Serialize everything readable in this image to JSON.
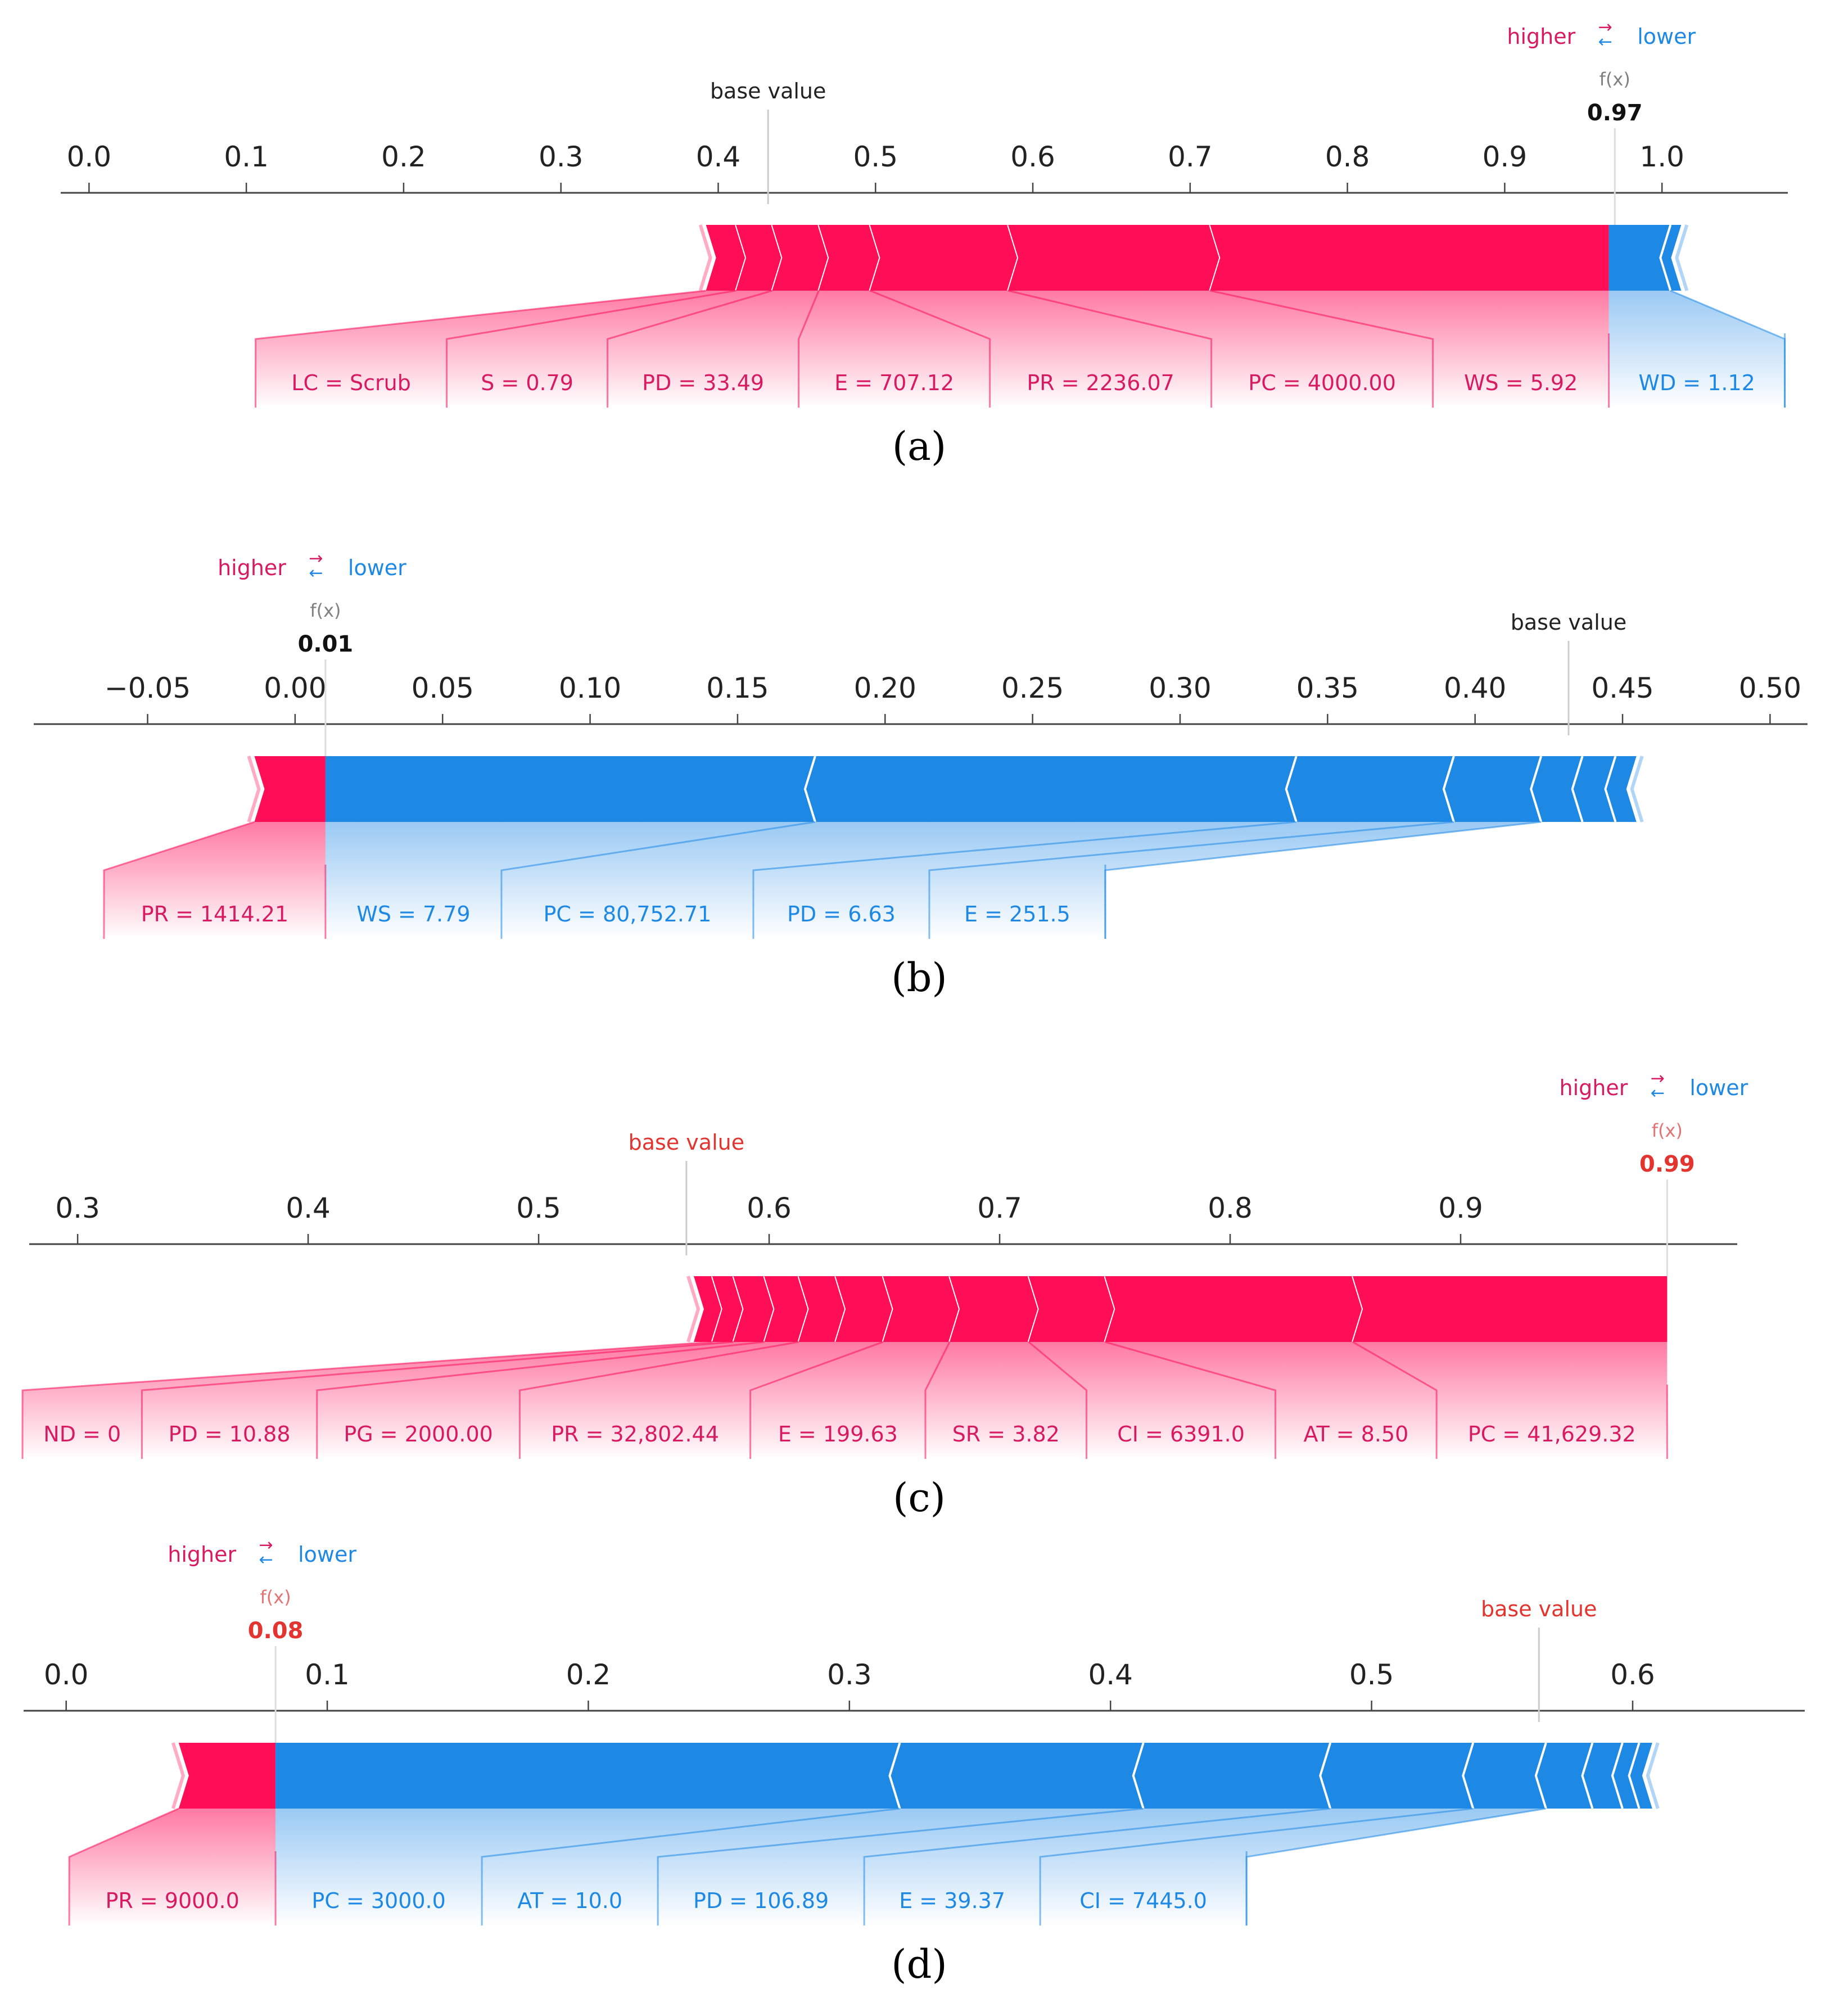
{
  "colors": {
    "positive": "#FF0D57",
    "negative": "#1E88E5",
    "positive_label": "#D81B60",
    "negative_label": "#1E88E5",
    "base_value_dark": "#222222",
    "base_value_red": "#E3342F",
    "fx_label_gray": "#808080",
    "fx_label_pink": "#E57373"
  },
  "chart_data": [
    {
      "type": "bar",
      "subtype": "shap-force-plot",
      "caption": "(a)",
      "title_style": "dark",
      "legend": {
        "higher": "higher",
        "lower": "lower",
        "placement": "above-fx"
      },
      "fx_label": "f(x)",
      "fx_value": "0.97",
      "fx": 0.97,
      "base_value_label": "base value",
      "base_value": 0.4317,
      "xlim": [
        -0.018,
        1.08
      ],
      "ticks": [
        0.0,
        0.1,
        0.2,
        0.3,
        0.4,
        0.5,
        0.6,
        0.7,
        0.8,
        0.9,
        1.0
      ],
      "tick_labels": [
        "0.0",
        "0.1",
        "0.2",
        "0.3",
        "0.4",
        "0.5",
        "0.6",
        "0.7",
        "0.8",
        "0.9",
        "1.0"
      ],
      "positive_segments": [
        0.3922,
        0.4113,
        0.4343,
        0.4639,
        0.4965,
        0.5843,
        0.7127,
        0.9662
      ],
      "negative_segments": [
        0.9662,
        1.0054,
        1.0122
      ],
      "labels": [
        {
          "text": "LC = Scrub",
          "color": "pos",
          "value": 0.3922
        },
        {
          "text": "S = 0.79",
          "color": "pos",
          "value": 0.4113
        },
        {
          "text": "PD = 33.49",
          "color": "pos",
          "value": 0.4343
        },
        {
          "text": "E = 707.12",
          "color": "pos",
          "value": 0.4639
        },
        {
          "text": "PR = 2236.07",
          "color": "pos",
          "value": 0.4965
        },
        {
          "text": "PC = 4000.00",
          "color": "pos",
          "value": 0.5843
        },
        {
          "text": "WS = 5.92",
          "color": "pos",
          "value": 0.7127
        },
        {
          "text": "WD = 1.12",
          "color": "neg",
          "value": 1.0054
        }
      ]
    },
    {
      "type": "bar",
      "subtype": "shap-force-plot",
      "caption": "(b)",
      "title_style": "dark",
      "legend": {
        "higher": "higher",
        "lower": "lower",
        "placement": "above-fx"
      },
      "fx_label": "f(x)",
      "fx_value": "0.01",
      "fx": 0.0103,
      "base_value_label": "base value",
      "base_value": 0.4317,
      "xlim": [
        -0.0886,
        0.5127
      ],
      "ticks": [
        -0.05,
        0.0,
        0.05,
        0.1,
        0.15,
        0.2,
        0.25,
        0.3,
        0.35,
        0.4,
        0.45,
        0.5
      ],
      "tick_labels": [
        "−0.05",
        "0.00",
        "0.05",
        "0.10",
        "0.15",
        "0.20",
        "0.25",
        "0.30",
        "0.35",
        "0.40",
        "0.45",
        "0.50"
      ],
      "positive_segments": [
        -0.0138,
        0.0103
      ],
      "negative_segments": [
        0.0103,
        0.1763,
        0.3394,
        0.3928,
        0.4224,
        0.4364,
        0.4476,
        0.4547
      ],
      "labels": [
        {
          "text": "PR = 1414.21",
          "color": "pos",
          "value": -0.0138
        },
        {
          "text": "WS = 7.79",
          "color": "neg",
          "value": 0.1763
        },
        {
          "text": "PC = 80,752.71",
          "color": "neg",
          "value": 0.3394
        },
        {
          "text": "PD = 6.63",
          "color": "neg",
          "value": 0.3928
        },
        {
          "text": "E = 251.5",
          "color": "neg",
          "value": 0.4224
        }
      ]
    },
    {
      "type": "bar",
      "subtype": "shap-force-plot",
      "caption": "(c)",
      "title_style": "red",
      "legend": {
        "higher": "higher",
        "lower": "lower",
        "placement": "above-fx"
      },
      "fx_label": "f(x)",
      "fx_value": "0.99",
      "fx": 0.9896,
      "base_value_label": "base value",
      "base_value": 0.5641,
      "xlim": [
        0.279,
        1.02
      ],
      "ticks": [
        0.3,
        0.4,
        0.5,
        0.6,
        0.7,
        0.8,
        0.9
      ],
      "tick_labels": [
        "0.3",
        "0.4",
        "0.5",
        "0.6",
        "0.7",
        "0.8",
        "0.9"
      ],
      "positive_segments": [
        0.5673,
        0.5753,
        0.5845,
        0.5979,
        0.6128,
        0.6288,
        0.6494,
        0.6783,
        0.7126,
        0.7457,
        0.8532,
        0.9896
      ],
      "negative_segments": [],
      "labels": [
        {
          "text": "ND = 0",
          "color": "pos",
          "value": 0.5753
        },
        {
          "text": "PD = 10.88",
          "color": "pos",
          "value": 0.5845
        },
        {
          "text": "PG = 2000.00",
          "color": "pos",
          "value": 0.5979
        },
        {
          "text": "PR = 32,802.44",
          "color": "pos",
          "value": 0.6128
        },
        {
          "text": "E = 199.63",
          "color": "pos",
          "value": 0.6494
        },
        {
          "text": "SR = 3.82",
          "color": "pos",
          "value": 0.6783
        },
        {
          "text": "CI = 6391.0",
          "color": "pos",
          "value": 0.7126
        },
        {
          "text": "AT = 8.50",
          "color": "pos",
          "value": 0.7457
        },
        {
          "text": "PC = 41,629.32",
          "color": "pos",
          "value": 0.8532
        }
      ]
    },
    {
      "type": "bar",
      "subtype": "shap-force-plot",
      "caption": "(d)",
      "title_style": "red",
      "legend": {
        "higher": "higher",
        "lower": "lower",
        "placement": "above-fx"
      },
      "fx_label": "f(x)",
      "fx_value": "0.08",
      "fx": 0.0802,
      "base_value_label": "base value",
      "base_value": 0.5641,
      "xlim": [
        -0.0163,
        0.6659
      ],
      "ticks": [
        0.0,
        0.1,
        0.2,
        0.3,
        0.4,
        0.5,
        0.6
      ],
      "tick_labels": [
        "0.0",
        "0.1",
        "0.2",
        "0.3",
        "0.4",
        "0.5",
        "0.6"
      ],
      "positive_segments": [
        0.0431,
        0.0802
      ],
      "negative_segments": [
        0.0802,
        0.3193,
        0.4126,
        0.4842,
        0.5389,
        0.5668,
        0.5846,
        0.5961,
        0.6025,
        0.6075
      ],
      "labels": [
        {
          "text": "PR = 9000.0",
          "color": "pos",
          "value": 0.0431
        },
        {
          "text": "PC = 3000.0",
          "color": "neg",
          "value": 0.3193
        },
        {
          "text": "AT = 10.0",
          "color": "neg",
          "value": 0.4126
        },
        {
          "text": "PD = 106.89",
          "color": "neg",
          "value": 0.4842
        },
        {
          "text": "E = 39.37",
          "color": "neg",
          "value": 0.5389
        },
        {
          "text": "CI = 7445.0",
          "color": "neg",
          "value": 0.5668
        }
      ]
    }
  ]
}
